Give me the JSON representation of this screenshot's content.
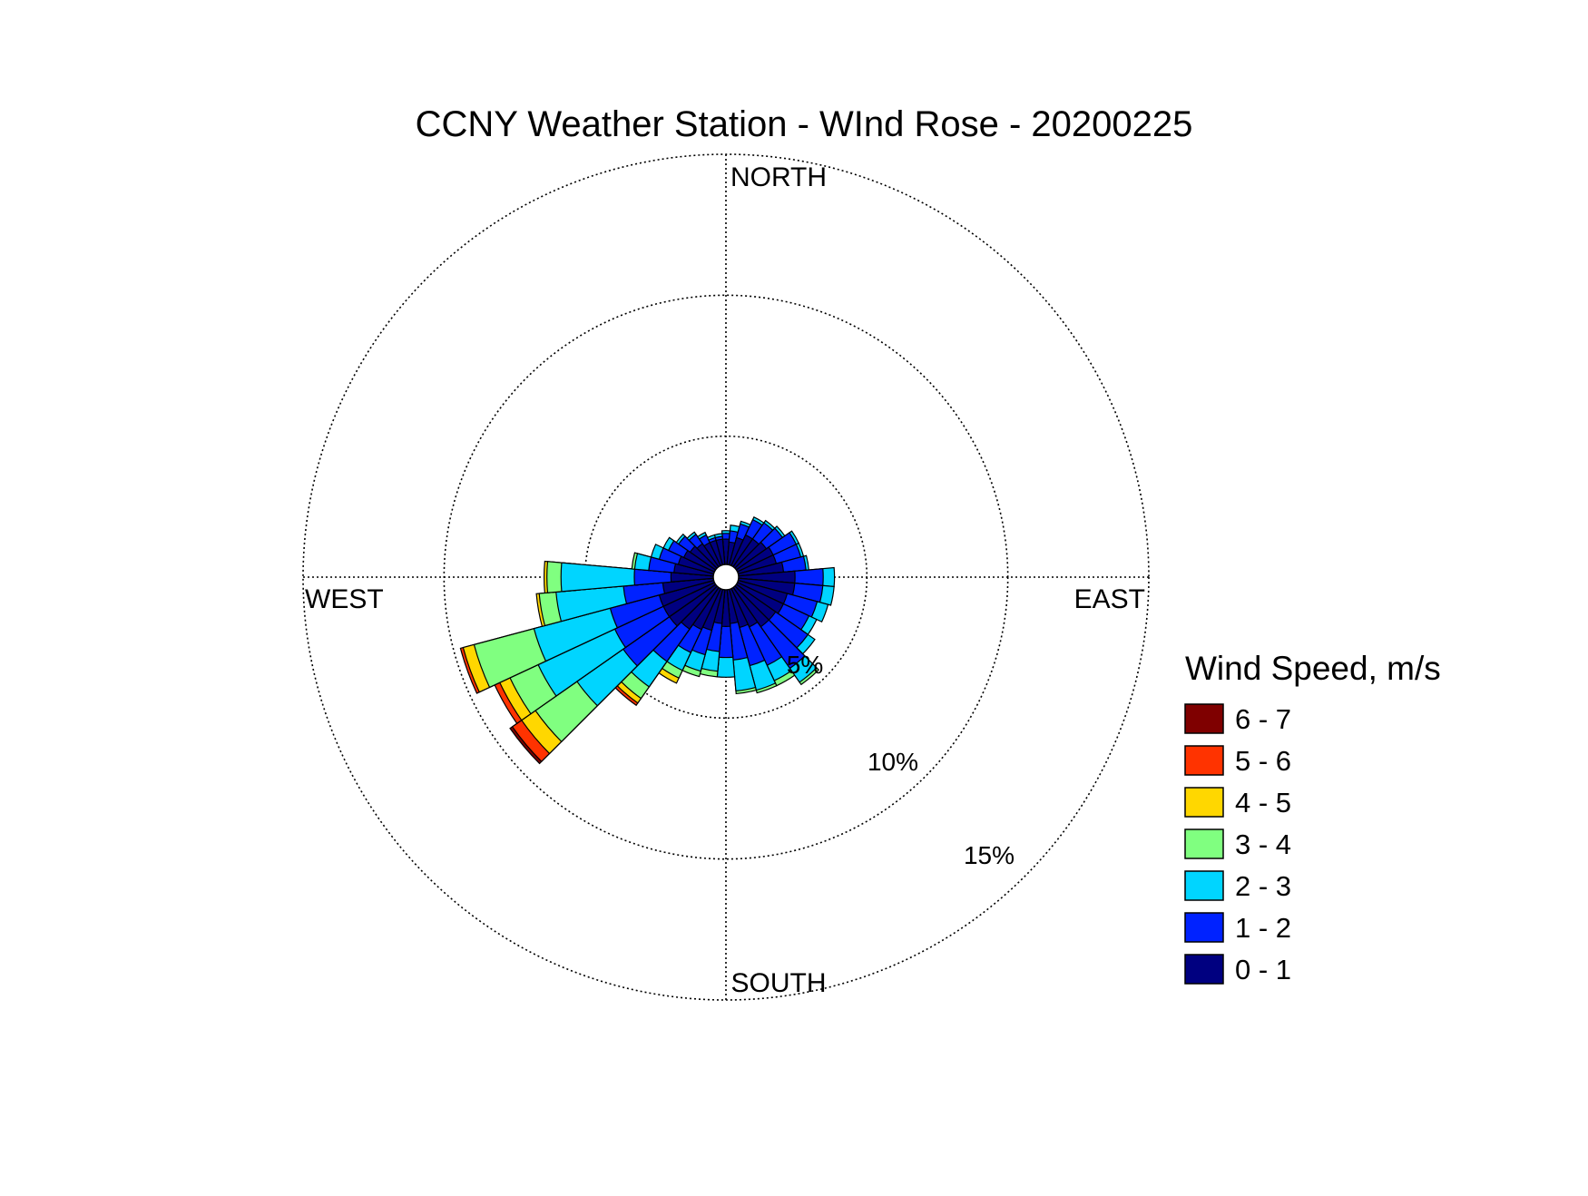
{
  "chart_data": {
    "type": "wind-rose",
    "title": "CCNY Weather Station - WInd Rose - 20200225",
    "directions": {
      "north": "NORTH",
      "south": "SOUTH",
      "east": "EAST",
      "west": "WEST"
    },
    "rings": [
      {
        "value": 5,
        "label": "5%"
      },
      {
        "value": 10,
        "label": "10%"
      },
      {
        "value": 15,
        "label": "15%"
      }
    ],
    "rmax": 15,
    "grid": true,
    "bin_width_deg": 10,
    "legend": {
      "title": "Wind Speed, m/s",
      "placement": "right",
      "entries": [
        {
          "label": "6 - 7",
          "color": "#7f0000"
        },
        {
          "label": "5 - 6",
          "color": "#ff3300"
        },
        {
          "label": "4 - 5",
          "color": "#ffd700"
        },
        {
          "label": "3 - 4",
          "color": "#80ff80"
        },
        {
          "label": "2 - 3",
          "color": "#00d5ff"
        },
        {
          "label": "1 - 2",
          "color": "#0022ff"
        },
        {
          "label": "0 - 1",
          "color": "#000080"
        }
      ]
    },
    "speed_bins": [
      "0 - 1",
      "1 - 2",
      "2 - 3",
      "3 - 4",
      "4 - 5",
      "5 - 6",
      "6 - 7"
    ],
    "petals": [
      {
        "direction_deg": 0,
        "cumulative_percent": [
          0.9,
          1.1,
          1.2
        ]
      },
      {
        "direction_deg": 10,
        "cumulative_percent": [
          0.8,
          1.2,
          1.4
        ]
      },
      {
        "direction_deg": 20,
        "cumulative_percent": [
          1.0,
          1.5,
          1.6
        ]
      },
      {
        "direction_deg": 30,
        "cumulative_percent": [
          1.2,
          1.8,
          1.9
        ]
      },
      {
        "direction_deg": 40,
        "cumulative_percent": [
          1.2,
          1.9,
          2.0
        ]
      },
      {
        "direction_deg": 50,
        "cumulative_percent": [
          1.3,
          2.0,
          2.1
        ]
      },
      {
        "direction_deg": 60,
        "cumulative_percent": [
          1.4,
          2.3,
          2.4
        ]
      },
      {
        "direction_deg": 70,
        "cumulative_percent": [
          1.4,
          2.3,
          2.4
        ]
      },
      {
        "direction_deg": 80,
        "cumulative_percent": [
          1.6,
          2.4,
          2.5
        ]
      },
      {
        "direction_deg": 90,
        "cumulative_percent": [
          2.0,
          3.0,
          3.4
        ]
      },
      {
        "direction_deg": 100,
        "cumulative_percent": [
          2.0,
          3.0,
          3.4
        ]
      },
      {
        "direction_deg": 110,
        "cumulative_percent": [
          1.8,
          2.9,
          3.3
        ]
      },
      {
        "direction_deg": 120,
        "cumulative_percent": [
          1.8,
          2.8,
          3.1
        ]
      },
      {
        "direction_deg": 130,
        "cumulative_percent": [
          1.7,
          3.1,
          3.4
        ]
      },
      {
        "direction_deg": 140,
        "cumulative_percent": [
          1.7,
          3.5,
          4.1,
          4.2
        ]
      },
      {
        "direction_deg": 150,
        "cumulative_percent": [
          1.5,
          3.0,
          3.6,
          3.8
        ]
      },
      {
        "direction_deg": 160,
        "cumulative_percent": [
          1.4,
          2.8,
          3.7,
          3.8
        ]
      },
      {
        "direction_deg": 170,
        "cumulative_percent": [
          1.2,
          2.5,
          3.6,
          3.7
        ]
      },
      {
        "direction_deg": 180,
        "cumulative_percent": [
          1.3,
          2.4,
          3.1
        ]
      },
      {
        "direction_deg": 190,
        "cumulative_percent": [
          1.2,
          2.2,
          2.9,
          3.1
        ]
      },
      {
        "direction_deg": 200,
        "cumulative_percent": [
          1.5,
          2.4,
          3.0,
          3.2
        ]
      },
      {
        "direction_deg": 210,
        "cumulative_percent": [
          1.6,
          2.5,
          3.2,
          3.5,
          3.7
        ]
      },
      {
        "direction_deg": 220,
        "cumulative_percent": [
          1.8,
          3.2,
          4.3,
          4.8,
          5.0,
          5.1
        ]
      },
      {
        "direction_deg": 230,
        "cumulative_percent": [
          2.0,
          4.0,
          6.0,
          7.8,
          8.4,
          8.8,
          8.9
        ]
      },
      {
        "direction_deg": 240,
        "cumulative_percent": [
          2.0,
          3.9,
          6.9,
          8.0,
          8.4,
          8.6
        ]
      },
      {
        "direction_deg": 250,
        "cumulative_percent": [
          2.0,
          3.8,
          6.6,
          8.8,
          9.2,
          9.3
        ]
      },
      {
        "direction_deg": 260,
        "cumulative_percent": [
          1.8,
          3.2,
          5.6,
          6.2,
          6.3
        ]
      },
      {
        "direction_deg": 270,
        "cumulative_percent": [
          1.5,
          2.8,
          5.4,
          5.9,
          6.0
        ]
      },
      {
        "direction_deg": 280,
        "cumulative_percent": [
          1.4,
          2.3,
          2.8,
          2.9
        ]
      },
      {
        "direction_deg": 290,
        "cumulative_percent": [
          1.3,
          2.0,
          2.3
        ]
      },
      {
        "direction_deg": 300,
        "cumulative_percent": [
          1.2,
          1.8,
          2.0
        ]
      },
      {
        "direction_deg": 310,
        "cumulative_percent": [
          1.1,
          1.6,
          1.7
        ]
      },
      {
        "direction_deg": 320,
        "cumulative_percent": [
          1.0,
          1.4,
          1.5
        ]
      },
      {
        "direction_deg": 330,
        "cumulative_percent": [
          0.9,
          1.2,
          1.3
        ]
      },
      {
        "direction_deg": 340,
        "cumulative_percent": [
          0.9,
          1.0,
          1.1
        ]
      },
      {
        "direction_deg": 350,
        "cumulative_percent": [
          0.9,
          1.0,
          1.1
        ]
      }
    ]
  }
}
